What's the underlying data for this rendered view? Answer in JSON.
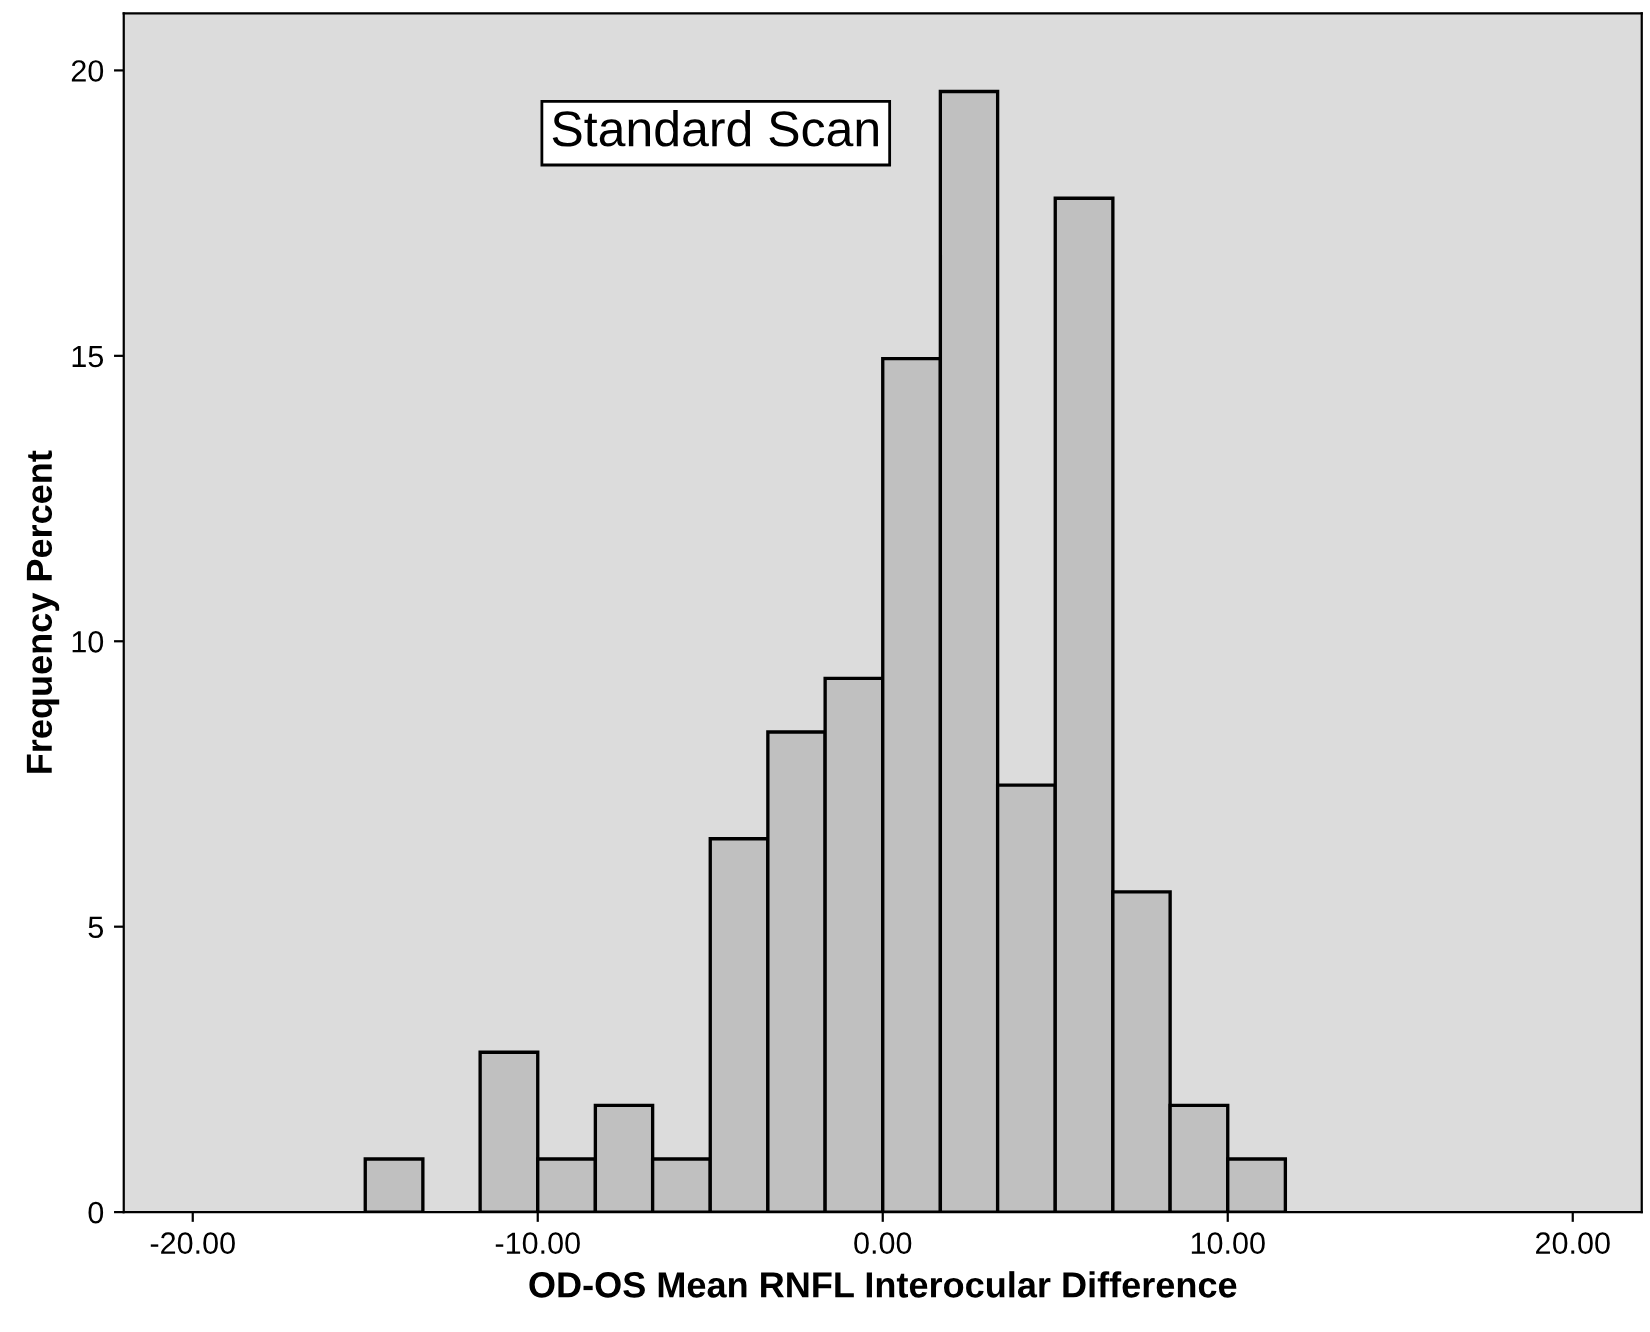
{
  "chart_data": {
    "type": "histogram",
    "xlabel": "OD-OS Mean RNFL Interocular Difference",
    "ylabel": "Frequency Percent",
    "annotations": [
      "Standard Scan"
    ],
    "bins": [
      -15.0,
      -13.33,
      -11.67,
      -10.0,
      -8.33,
      -6.67,
      -5.0,
      -3.33,
      -1.67,
      0.0,
      1.67,
      3.33,
      5.0,
      6.67,
      8.33,
      10.0,
      11.67
    ],
    "values": [
      0.93,
      0,
      2.8,
      0.93,
      1.87,
      0.93,
      6.54,
      8.41,
      9.35,
      14.95,
      19.63,
      7.48,
      17.76,
      5.61,
      1.87,
      0.93
    ],
    "color": "#c0c0c0",
    "xlim": [
      -22,
      22
    ],
    "ylim": [
      0,
      21
    ],
    "xticks": [
      {
        "value": -20,
        "label": "-20.00"
      },
      {
        "value": -10,
        "label": "-10.00"
      },
      {
        "value": 0,
        "label": "0.00"
      },
      {
        "value": 10,
        "label": "10.00"
      },
      {
        "value": 20,
        "label": "20.00"
      }
    ],
    "yticks": [
      0,
      5,
      10,
      15,
      20
    ],
    "grid": false,
    "legend": false
  }
}
